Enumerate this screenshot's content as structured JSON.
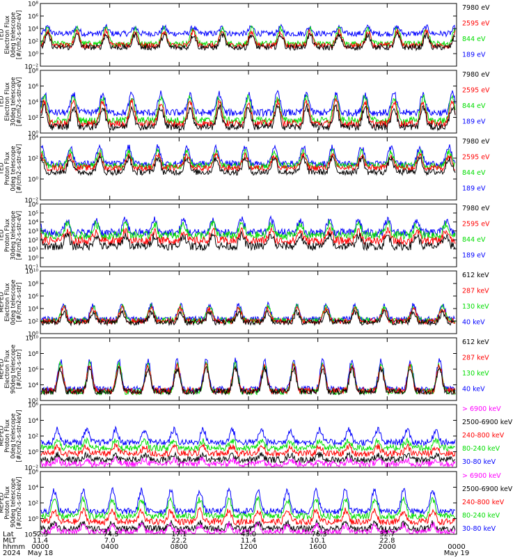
{
  "figure": {
    "time_axis": {
      "tick_hours": [
        0,
        4,
        8,
        12,
        16,
        20,
        24
      ],
      "labels": {
        "lat": "Lat",
        "mlt": "MLT",
        "hhmm": "hhmm",
        "year": "2024"
      },
      "lat_values": [
        "52.9",
        "-74.5",
        "17.1",
        "43.0",
        "-76.3",
        "32.7",
        ""
      ],
      "mlt_values": [
        "11.4",
        "7.0",
        "22.2",
        "11.4",
        "10.1",
        "22.8",
        ""
      ],
      "hhmm_values": [
        "0000",
        "0400",
        "0800",
        "1200",
        "1600",
        "2000",
        "0000"
      ],
      "start_date": "May 18",
      "end_date": "May 19"
    }
  },
  "colors": {
    "black": "#000000",
    "red": "#ff0000",
    "green": "#00dd00",
    "blue": "#0000ff",
    "magenta": "#ff00ff"
  },
  "chart_data": [
    {
      "type": "line",
      "id": "ted-electron-0deg",
      "ylabel_lines": [
        "TED",
        "Electron Flux",
        "0deg telescope",
        "[#/cm2-s-str-eV]"
      ],
      "y_scale": "log",
      "y_ticks": [
        "10⁸",
        "10⁶",
        "10⁴",
        "10²",
        "10⁰",
        "10⁻²"
      ],
      "ylim_exp": [
        -2,
        8
      ],
      "legend": [
        {
          "label": "7980 eV",
          "color": "black"
        },
        {
          "label": "2595 eV",
          "color": "red"
        },
        {
          "label": "844 eV",
          "color": "green"
        },
        {
          "label": "189 eV",
          "color": "blue"
        }
      ],
      "series_levels": [
        {
          "base": 1.0,
          "amp": 2.0
        },
        {
          "base": 1.3,
          "amp": 2.2
        },
        {
          "base": 1.6,
          "amp": 2.4
        },
        {
          "base": 3.2,
          "amp": 1.0
        }
      ]
    },
    {
      "type": "line",
      "id": "ted-electron-30deg",
      "ylabel_lines": [
        "TED",
        "Electron Flux",
        "30deg telescope",
        "[#/cm2-s-str-eV]"
      ],
      "y_scale": "log",
      "y_ticks": [
        "10⁸",
        "10⁶",
        "10⁴",
        "10²",
        "10⁰"
      ],
      "ylim_exp": [
        0,
        8
      ],
      "legend": [
        {
          "label": "7980 eV",
          "color": "black"
        },
        {
          "label": "2595 eV",
          "color": "red"
        },
        {
          "label": "844 eV",
          "color": "green"
        },
        {
          "label": "189 eV",
          "color": "blue"
        }
      ],
      "series_levels": [
        {
          "base": 0.8,
          "amp": 2.5
        },
        {
          "base": 1.2,
          "amp": 2.8
        },
        {
          "base": 1.6,
          "amp": 3.0
        },
        {
          "base": 2.6,
          "amp": 2.4
        }
      ]
    },
    {
      "type": "line",
      "id": "ted-proton-0deg",
      "ylabel_lines": [
        "TED",
        "Proton Flux",
        "0deg telescope",
        "[#/cm2-s-str-eV]"
      ],
      "y_scale": "log",
      "y_ticks": [
        "10⁴",
        "10²",
        "10⁰",
        "10⁻²"
      ],
      "ylim_exp": [
        -3,
        6
      ],
      "legend": [
        {
          "label": "7980 eV",
          "color": "black"
        },
        {
          "label": "2595 eV",
          "color": "red"
        },
        {
          "label": "844 eV",
          "color": "green"
        },
        {
          "label": "189 eV",
          "color": "blue"
        }
      ],
      "series_levels": [
        {
          "base": 1.0,
          "amp": 2.0
        },
        {
          "base": 1.6,
          "amp": 1.8
        },
        {
          "base": 1.9,
          "amp": 2.0
        },
        {
          "base": 2.2,
          "amp": 2.4
        }
      ]
    },
    {
      "type": "line",
      "id": "ted-proton-30deg",
      "ylabel_lines": [
        "TED",
        "Proton Flux",
        "30deg telescope",
        "[#/cm2-s-str-eV]"
      ],
      "y_scale": "log",
      "y_ticks": [
        "10⁶",
        "10⁵",
        "10⁴",
        "10³",
        "10²",
        "10¹",
        "10⁰",
        "10⁻¹"
      ],
      "ylim_exp": [
        -1,
        6
      ],
      "legend": [
        {
          "label": "7980 eV",
          "color": "black"
        },
        {
          "label": "2595 eV",
          "color": "red"
        },
        {
          "label": "844 eV",
          "color": "green"
        },
        {
          "label": "189 eV",
          "color": "blue"
        }
      ],
      "series_levels": [
        {
          "base": 1.3,
          "amp": 1.2
        },
        {
          "base": 1.9,
          "amp": 1.1
        },
        {
          "base": 2.5,
          "amp": 1.3
        },
        {
          "base": 2.8,
          "amp": 1.4
        }
      ]
    },
    {
      "type": "line",
      "id": "mepted-electron-0deg",
      "ylabel_lines": [
        "MEPED",
        "Electron Flux",
        "0deg telescope",
        "[#/cm2-s-str]"
      ],
      "y_scale": "log",
      "y_ticks": [
        "10¹⁰",
        "10⁸",
        "10⁶",
        "10⁴",
        "10²",
        "10⁰"
      ],
      "ylim_exp": [
        0,
        10
      ],
      "legend": [
        {
          "label": "612 keV",
          "color": "black"
        },
        {
          "label": "287 keV",
          "color": "red"
        },
        {
          "label": "130 keV",
          "color": "green"
        },
        {
          "label": "40 keV",
          "color": "blue"
        }
      ],
      "series_levels": [
        {
          "base": 1.8,
          "amp": 1.6
        },
        {
          "base": 2.0,
          "amp": 2.0
        },
        {
          "base": 2.1,
          "amp": 2.2
        },
        {
          "base": 2.3,
          "amp": 2.3
        }
      ]
    },
    {
      "type": "line",
      "id": "mepted-electron-90deg",
      "ylabel_lines": [
        "MEPED",
        "Electron Flux",
        "90deg telescope",
        "[#/cm2-s-str]"
      ],
      "y_scale": "log",
      "y_ticks": [
        "10¹⁰",
        "10⁸",
        "10⁶",
        "10⁴",
        "10²"
      ],
      "ylim_exp": [
        1,
        10
      ],
      "legend": [
        {
          "label": "612 keV",
          "color": "black"
        },
        {
          "label": "287 keV",
          "color": "red"
        },
        {
          "label": "130 keV",
          "color": "green"
        },
        {
          "label": "40 keV",
          "color": "blue"
        }
      ],
      "series_levels": [
        {
          "base": 2.3,
          "amp": 3.2
        },
        {
          "base": 2.4,
          "amp": 3.6
        },
        {
          "base": 2.3,
          "amp": 3.9
        },
        {
          "base": 2.6,
          "amp": 4.1
        }
      ]
    },
    {
      "type": "line",
      "id": "mepted-proton-0deg",
      "ylabel_lines": [
        "MEPED",
        "Proton Flux",
        "0deg telescope",
        "[#/cm2-s-str-keV]"
      ],
      "y_scale": "log",
      "y_ticks": [
        "10⁶",
        "10⁴",
        "10²",
        "10⁰",
        "10⁻²"
      ],
      "ylim_exp": [
        -3,
        6
      ],
      "legend": [
        {
          "label": "> 6900 keV",
          "color": "magenta"
        },
        {
          "label": "2500-6900 keV",
          "color": "black"
        },
        {
          "label": "240-800 keV",
          "color": "red"
        },
        {
          "label": "80-240 keV",
          "color": "green"
        },
        {
          "label": "30-80 keV",
          "color": "blue"
        }
      ],
      "series_levels": [
        {
          "base": -2.5,
          "amp": 0.6
        },
        {
          "base": -1.9,
          "amp": 0.7
        },
        {
          "base": -1.0,
          "amp": 1.0
        },
        {
          "base": -0.2,
          "amp": 1.0
        },
        {
          "base": 0.6,
          "amp": 1.8
        }
      ]
    },
    {
      "type": "line",
      "id": "mepted-proton-90deg",
      "ylabel_lines": [
        "MEPED",
        "Proton Flux",
        "90deg telescope",
        "[#/cm2-s-str-keV]"
      ],
      "y_scale": "log",
      "y_ticks": [
        "10⁶",
        "10⁴",
        "10²",
        "10⁰",
        "10⁻²"
      ],
      "ylim_exp": [
        -3,
        6
      ],
      "legend": [
        {
          "label": "> 6900 keV",
          "color": "magenta"
        },
        {
          "label": "2500-6900 keV",
          "color": "black"
        },
        {
          "label": "240-800 keV",
          "color": "red"
        },
        {
          "label": "80-240 keV",
          "color": "green"
        },
        {
          "label": "30-80 keV",
          "color": "blue"
        }
      ],
      "series_levels": [
        {
          "base": -2.7,
          "amp": 1.0
        },
        {
          "base": -2.2,
          "amp": 0.8
        },
        {
          "base": -1.2,
          "amp": 1.6
        },
        {
          "base": -0.4,
          "amp": 2.4
        },
        {
          "base": 0.3,
          "amp": 3.0
        }
      ]
    }
  ]
}
